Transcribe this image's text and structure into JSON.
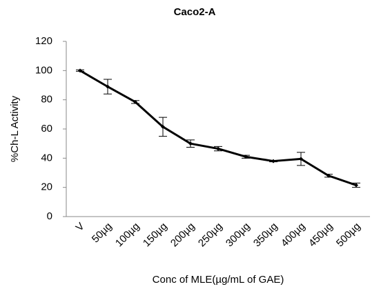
{
  "chart_data": {
    "type": "line",
    "title": "Caco2-A",
    "x_label": "Conc of MLE(µg/mL of GAE)",
    "y_label": "%Ch-L Activity",
    "categories": [
      "V",
      "50µg",
      "100µg",
      "150µg",
      "200µg",
      "250µg",
      "300µg",
      "350µg",
      "400µg",
      "450µg",
      "500µg"
    ],
    "values": [
      100,
      89,
      78.5,
      61.5,
      50,
      46.5,
      41,
      38,
      39.5,
      28,
      21.5
    ],
    "errors": [
      0.5,
      5,
      1,
      6.5,
      2.5,
      1.5,
      1,
      0.5,
      4.5,
      1,
      1.5
    ],
    "color": "#000000",
    "ylim": [
      0,
      120
    ],
    "yticks": [
      0,
      20,
      40,
      60,
      80,
      100,
      120
    ]
  }
}
